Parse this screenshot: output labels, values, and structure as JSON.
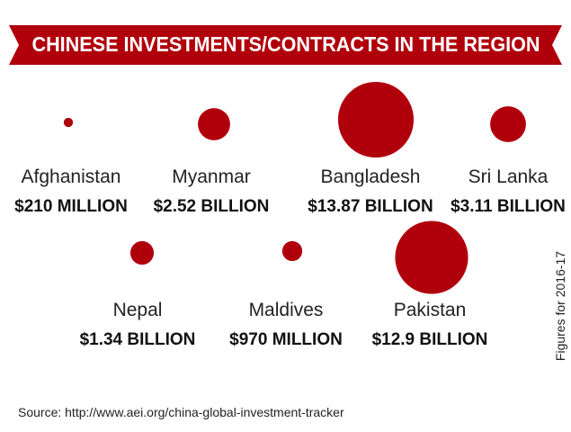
{
  "chart_data": {
    "type": "bubble",
    "title": "CHINESE INVESTMENTS/CONTRACTS IN THE REGION",
    "categories": [
      "Afghanistan",
      "Myanmar",
      "Bangladesh",
      "Sri Lanka",
      "Nepal",
      "Maldives",
      "Pakistan"
    ],
    "values": [
      210,
      2520,
      13870,
      3110,
      1340,
      970,
      12900
    ],
    "value_labels": [
      "$210 MILLION",
      "$2.52 BILLION",
      "$13.87 BILLION",
      "$3.11 BILLION",
      "$1.34 BILLION",
      "$970 MILLION",
      "$12.9 BILLION"
    ],
    "color": "#b0000b",
    "note": "Figures for 2016-17",
    "source": "Source: http://www.aei.org/china-global-investment-tracker"
  }
}
